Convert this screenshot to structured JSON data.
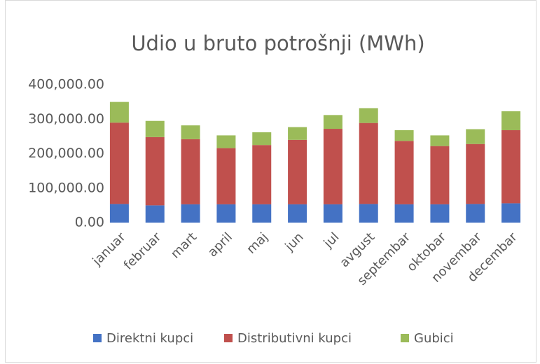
{
  "chart_data": {
    "type": "stacked_bar",
    "title": "Udio u bruto potrošnji (MWh)",
    "categories": [
      "januar",
      "februar",
      "mart",
      "april",
      "maj",
      "jun",
      "jul",
      "avgust",
      "septembar",
      "oktobar",
      "novembar",
      "decembar"
    ],
    "series": [
      {
        "name": "Direktni kupci",
        "color": "#4472c4",
        "values": [
          54000,
          50000,
          53000,
          53000,
          53000,
          53000,
          53000,
          54000,
          53000,
          53000,
          54000,
          56000
        ]
      },
      {
        "name": "Distributivni kupci",
        "color": "#c0504d",
        "values": [
          236000,
          198000,
          189000,
          163000,
          172000,
          187000,
          219000,
          235000,
          184000,
          169000,
          174000,
          212000
        ]
      },
      {
        "name": "Gubici",
        "color": "#9bbb59",
        "values": [
          60000,
          47000,
          40000,
          37000,
          37000,
          37000,
          40000,
          43000,
          31000,
          31000,
          43000,
          55000
        ]
      }
    ],
    "ylim": [
      0,
      400000
    ],
    "yticks": [
      {
        "value": 0,
        "label": "0.00"
      },
      {
        "value": 100000,
        "label": "100,000.00"
      },
      {
        "value": 200000,
        "label": "200,000.00"
      },
      {
        "value": 300000,
        "label": "300,000.00"
      },
      {
        "value": 400000,
        "label": "400,000.00"
      }
    ],
    "legend": "bottom"
  }
}
